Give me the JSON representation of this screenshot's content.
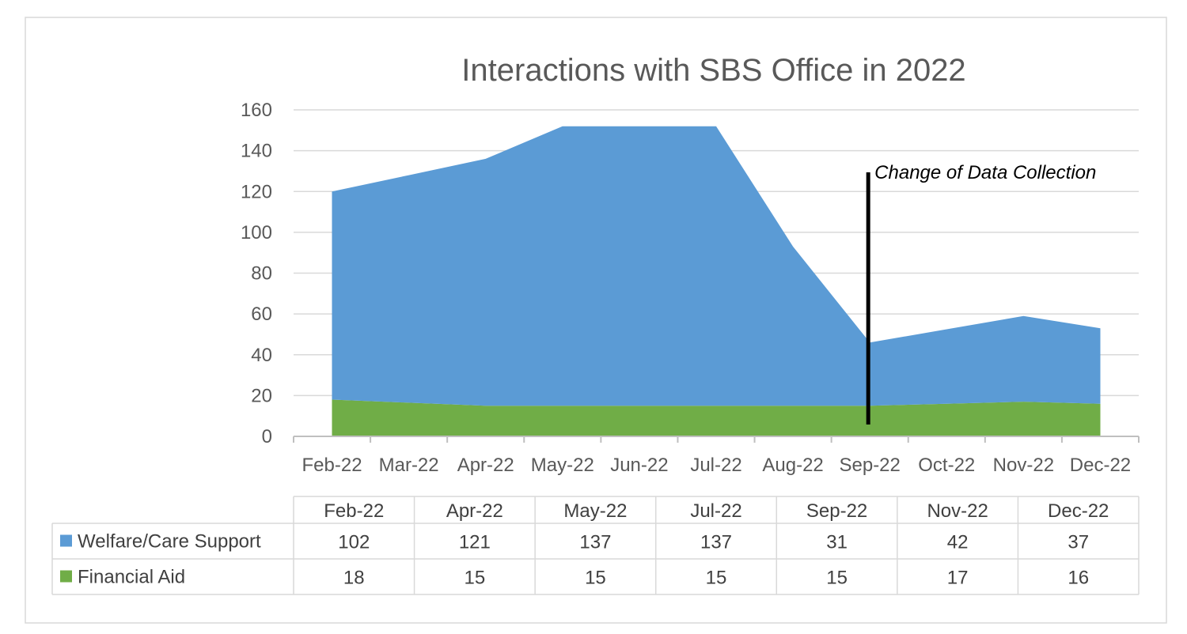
{
  "chart_data": {
    "type": "area",
    "title": "Interactions with SBS Office in 2022",
    "stacked": true,
    "categories": [
      "Feb-22",
      "Mar-22",
      "Apr-22",
      "May-22",
      "Jun-22",
      "Jul-22",
      "Aug-22",
      "Sep-22",
      "Oct-22",
      "Nov-22",
      "Dec-22"
    ],
    "series": [
      {
        "name": "Financial Aid",
        "color": "#70AD47",
        "values": [
          18,
          16.5,
          15,
          15,
          15,
          15,
          15,
          15,
          16,
          17,
          16
        ]
      },
      {
        "name": "Welfare/Care Support",
        "color": "#5B9BD5",
        "values": [
          102,
          111.5,
          121,
          137,
          137,
          137,
          78,
          31,
          36.5,
          42,
          37
        ]
      }
    ],
    "y_ticks": [
      0,
      20,
      40,
      60,
      80,
      100,
      120,
      140,
      160
    ],
    "ylim": [
      0,
      160
    ],
    "grid": true,
    "annotation": {
      "text": "Change of Data Collection",
      "between": [
        "Sep-22",
        "Oct-22"
      ]
    },
    "data_table": {
      "columns": [
        "Feb-22",
        "Apr-22",
        "May-22",
        "Jul-22",
        "Sep-22",
        "Nov-22",
        "Dec-22"
      ],
      "rows": [
        {
          "label": "Welfare/Care Support",
          "color": "#5B9BD5",
          "values": [
            "102",
            "121",
            "137",
            "137",
            "31",
            "42",
            "37"
          ]
        },
        {
          "label": "Financial Aid",
          "color": "#70AD47",
          "values": [
            "18",
            "15",
            "15",
            "15",
            "15",
            "17",
            "16"
          ]
        }
      ]
    }
  }
}
